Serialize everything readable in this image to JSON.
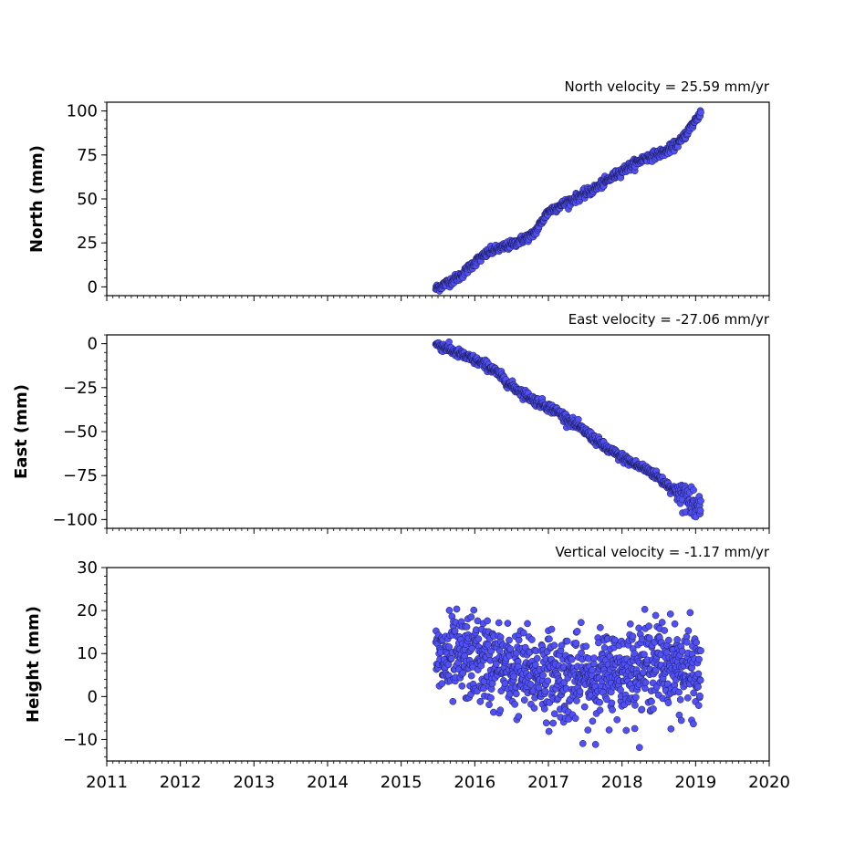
{
  "chart_data": [
    {
      "type": "scatter",
      "ylabel": "North (mm)",
      "velocity_label": "North velocity = 25.59 mm/yr",
      "ylim": [
        -5,
        105
      ],
      "yticks": [
        0,
        25,
        50,
        75,
        100
      ],
      "xlim": [
        2011,
        2020
      ],
      "series_model": {
        "kind": "trend",
        "t0": 2015.47,
        "t1": 2019.07,
        "start": 0,
        "end": 99,
        "noise": 1.5
      },
      "trend_points": [
        {
          "x": 2015.47,
          "y": -1
        },
        {
          "x": 2015.8,
          "y": 6
        },
        {
          "x": 2016.0,
          "y": 14
        },
        {
          "x": 2016.2,
          "y": 20
        },
        {
          "x": 2016.5,
          "y": 24
        },
        {
          "x": 2016.8,
          "y": 30
        },
        {
          "x": 2017.0,
          "y": 43
        },
        {
          "x": 2017.3,
          "y": 49
        },
        {
          "x": 2017.6,
          "y": 55
        },
        {
          "x": 2018.0,
          "y": 66
        },
        {
          "x": 2018.3,
          "y": 73
        },
        {
          "x": 2018.6,
          "y": 77
        },
        {
          "x": 2018.8,
          "y": 83
        },
        {
          "x": 2019.07,
          "y": 99
        }
      ],
      "marker_color": "#5050f5"
    },
    {
      "type": "scatter",
      "ylabel": "East (mm)",
      "velocity_label": "East velocity = -27.06 mm/yr",
      "ylim": [
        -105,
        5
      ],
      "yticks": [
        0,
        -25,
        -50,
        -75,
        -100
      ],
      "ytick_labels": [
        "0",
        "−25",
        "−50",
        "−75",
        "−100"
      ],
      "xlim": [
        2011,
        2020
      ],
      "trend_points": [
        {
          "x": 2015.47,
          "y": 0
        },
        {
          "x": 2015.8,
          "y": -6
        },
        {
          "x": 2016.2,
          "y": -13
        },
        {
          "x": 2016.5,
          "y": -24
        },
        {
          "x": 2016.8,
          "y": -32
        },
        {
          "x": 2017.1,
          "y": -38
        },
        {
          "x": 2017.5,
          "y": -50
        },
        {
          "x": 2017.8,
          "y": -60
        },
        {
          "x": 2018.1,
          "y": -67
        },
        {
          "x": 2018.4,
          "y": -73
        },
        {
          "x": 2018.7,
          "y": -83
        },
        {
          "x": 2019.07,
          "y": -92
        }
      ],
      "marker_color": "#5050f5"
    },
    {
      "type": "scatter",
      "ylabel": "Height (mm)",
      "velocity_label": "Vertical velocity = -1.17 mm/yr",
      "ylim": [
        -15,
        30
      ],
      "yticks": [
        30,
        20,
        10,
        0,
        -10
      ],
      "ytick_labels": [
        "30",
        "20",
        "10",
        "0",
        "−10"
      ],
      "xlim": [
        2011,
        2020
      ],
      "xticks": [
        2011,
        2012,
        2013,
        2014,
        2015,
        2016,
        2017,
        2018,
        2019,
        2020
      ],
      "xtick_labels": [
        "2011",
        "2012",
        "2013",
        "2014",
        "2015",
        "2016",
        "2017",
        "2018",
        "2019",
        "2020"
      ],
      "trend_points": [
        {
          "x": 2015.47,
          "y": 8
        },
        {
          "x": 2016.0,
          "y": 9
        },
        {
          "x": 2016.5,
          "y": 6
        },
        {
          "x": 2017.0,
          "y": 5
        },
        {
          "x": 2017.5,
          "y": 4
        },
        {
          "x": 2018.0,
          "y": 6
        },
        {
          "x": 2018.5,
          "y": 8
        },
        {
          "x": 2019.07,
          "y": 5
        }
      ],
      "scatter_spread": 5,
      "marker_color": "#5050f5"
    }
  ]
}
